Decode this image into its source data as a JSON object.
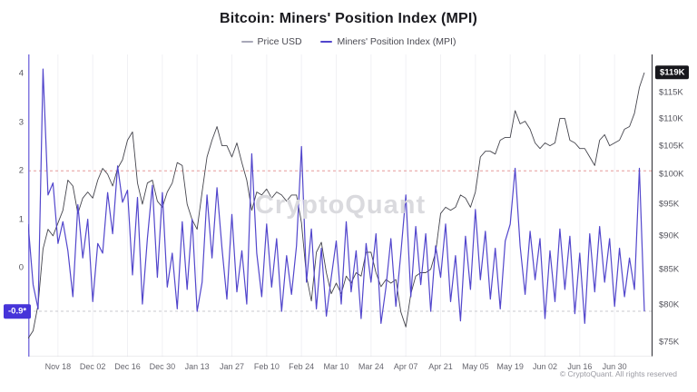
{
  "watermark": "CryptoQuant",
  "footer": {
    "copyright": "© CryptoQuant. All rights reserved"
  },
  "chart_data": {
    "type": "line",
    "title": "Bitcoin: Miners' Position Index (MPI)",
    "x_start": "2024-11-06",
    "x_interval_days": 2,
    "x_tick_labels": [
      "Nov 18",
      "Dec 02",
      "Dec 16",
      "Dec 30",
      "Jan 13",
      "Jan 27",
      "Feb 10",
      "Feb 24",
      "Mar 10",
      "Mar 24",
      "Apr 07",
      "Apr 21",
      "May 05",
      "May 19",
      "Jun 02",
      "Jun 16",
      "Jun 30"
    ],
    "left_axis": {
      "name": "Miners' Position Index (MPI)",
      "ticks": [
        4,
        3,
        2,
        1,
        0
      ],
      "axis_color": "#8379e0",
      "highlight": {
        "value": -0.9,
        "label": "-0.9*",
        "color": "#4634d9"
      },
      "reference_lines": [
        {
          "value": 2,
          "style": "dashed",
          "color": "#e59a9a"
        },
        {
          "value": -0.9,
          "style": "dashed",
          "color": "#c9c9cf"
        }
      ]
    },
    "right_axis": {
      "name": "Price USD",
      "scale": "log",
      "tick_values": [
        115,
        110,
        105,
        100,
        95,
        90,
        85,
        80,
        75
      ],
      "tick_labels": [
        "$115K",
        "$110K",
        "$105K",
        "$100K",
        "$95K",
        "$90K",
        "$85K",
        "$80K",
        "$75K"
      ],
      "axis_color": "#2b2b31",
      "highlight": {
        "value": 119,
        "label": "$119K",
        "color": "#17171c"
      }
    },
    "series": [
      {
        "name": "Price USD",
        "axis": "right",
        "unit": "USD thousands",
        "color": "#45454d",
        "legend_color": "#a8a8b8",
        "values": [
          75.5,
          76.5,
          80,
          88,
          91,
          90,
          92,
          94,
          99,
          98,
          93.5,
          96,
          97,
          96,
          99,
          101,
          100,
          98,
          101,
          102.5,
          106,
          107.5,
          98.5,
          95,
          98.5,
          99,
          95.5,
          94.5,
          97,
          98.5,
          102,
          101.5,
          95,
          92.5,
          91,
          97,
          103,
          106,
          108.5,
          105,
          105,
          103,
          105.5,
          102,
          99,
          94,
          97,
          96.5,
          97.5,
          96,
          97,
          96.5,
          95.5,
          96.5,
          96.5,
          92,
          84,
          80.5,
          87.5,
          89,
          84.5,
          81.5,
          83,
          81.5,
          84,
          83,
          84.5,
          84,
          87.5,
          87.5,
          84.5,
          82.5,
          83.5,
          83,
          83.5,
          79,
          77,
          81.5,
          84,
          84.5,
          84.5,
          85,
          87.5,
          93.5,
          94.5,
          94,
          94.5,
          96.5,
          96,
          94.5,
          97,
          103,
          104,
          104,
          103.5,
          106,
          106.5,
          106.5,
          111.5,
          109,
          109.5,
          108,
          105.5,
          104.5,
          105.5,
          105,
          105.5,
          110,
          110,
          106,
          105.5,
          104.5,
          104.5,
          103,
          101.5,
          106,
          107,
          105,
          105.5,
          106,
          108,
          108.5,
          111,
          116,
          119
        ]
      },
      {
        "name": "Miners' Position Index (MPI)",
        "axis": "left",
        "color": "#5246cc",
        "legend_color": "#5246cc",
        "values": [
          0.9,
          -0.35,
          -0.85,
          4.1,
          1.5,
          1.75,
          0.5,
          0.95,
          0.35,
          -0.6,
          1.3,
          0.2,
          1.0,
          -0.7,
          0.5,
          0.3,
          1.55,
          0.7,
          2.1,
          1.35,
          1.6,
          -0.15,
          1.45,
          -0.75,
          0.6,
          1.7,
          -0.2,
          1.55,
          -0.4,
          0.3,
          -0.85,
          0.95,
          -0.45,
          1.0,
          -0.9,
          -0.3,
          1.5,
          0.2,
          1.65,
          0.4,
          -0.65,
          1.1,
          -0.5,
          0.35,
          -0.75,
          2.35,
          0.3,
          -0.6,
          0.9,
          -0.4,
          0.6,
          -0.9,
          0.25,
          -0.55,
          0.45,
          2.5,
          -0.3,
          0.8,
          -0.85,
          0.4,
          -1.0,
          -0.2,
          0.55,
          -0.75,
          0.95,
          -0.5,
          0.35,
          -1.05,
          0.5,
          -0.3,
          0.7,
          -1.15,
          -0.4,
          0.6,
          -0.8,
          0.3,
          1.5,
          -0.6,
          0.85,
          -0.35,
          0.7,
          -0.9,
          0.45,
          -0.2,
          0.9,
          -0.7,
          0.25,
          -1.1,
          0.65,
          -0.45,
          1.2,
          -0.25,
          0.75,
          -0.65,
          0.4,
          -0.85,
          0.55,
          0.9,
          2.05,
          0.45,
          -0.55,
          0.75,
          -0.25,
          0.6,
          -1.05,
          0.35,
          -0.7,
          0.8,
          -0.45,
          0.65,
          -0.95,
          0.3,
          -1.15,
          0.7,
          -0.5,
          0.85,
          -0.3,
          0.6,
          -0.8,
          0.4,
          -0.6,
          0.2,
          -0.45,
          2.05,
          -0.9
        ]
      }
    ]
  }
}
